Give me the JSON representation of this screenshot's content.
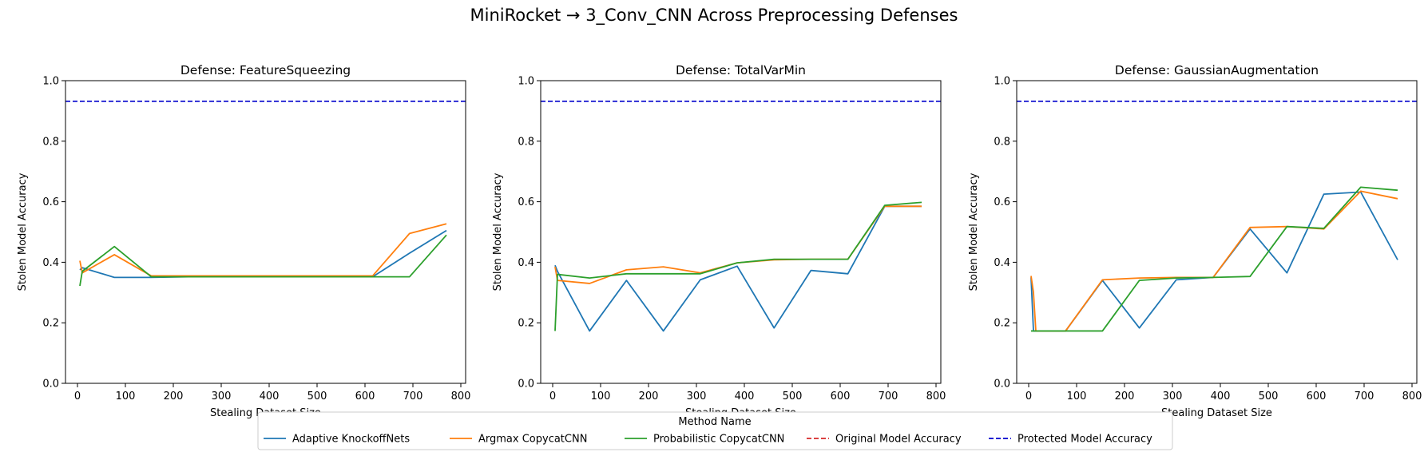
{
  "suptitle": "MiniRocket → 3_Conv_CNN Across Preprocessing Defenses",
  "colors": {
    "adaptive": "#1f77b4",
    "argmax": "#ff7f0e",
    "probabilistic": "#2ca02c",
    "original": "#d62728",
    "protected": "#0000cc"
  },
  "legend": {
    "title": "Method Name",
    "entries": [
      {
        "label": "Adaptive KnockoffNets",
        "key": "adaptive",
        "style": "solid"
      },
      {
        "label": "Argmax CopycatCNN",
        "key": "argmax",
        "style": "solid"
      },
      {
        "label": "Probabilistic CopycatCNN",
        "key": "probabilistic",
        "style": "solid"
      },
      {
        "label": "Original Model Accuracy",
        "key": "original",
        "style": "dashed"
      },
      {
        "label": "Protected Model Accuracy",
        "key": "protected",
        "style": "dashed"
      }
    ]
  },
  "chart_data": [
    {
      "type": "line",
      "title": "Defense: FeatureSqueezing",
      "xlabel": "Stealing Dataset Size",
      "ylabel": "Stolen Model Accuracy",
      "xlim": [
        -25,
        810
      ],
      "ylim": [
        0.0,
        1.0
      ],
      "xticks": [
        0,
        100,
        200,
        300,
        400,
        500,
        600,
        700,
        800
      ],
      "yticks": [
        0.0,
        0.2,
        0.4,
        0.6,
        0.8,
        1.0
      ],
      "grid": false,
      "hlines": [
        {
          "key": "protected",
          "y": 0.932
        }
      ],
      "series": [
        {
          "key": "adaptive",
          "x": [
            5,
            10,
            77,
            154,
            231,
            308,
            385,
            462,
            539,
            616,
            693,
            770
          ],
          "y": [
            0.375,
            0.382,
            0.35,
            0.35,
            0.352,
            0.352,
            0.352,
            0.352,
            0.352,
            0.352,
            0.43,
            0.505
          ]
        },
        {
          "key": "argmax",
          "x": [
            5,
            10,
            77,
            154,
            231,
            308,
            385,
            462,
            539,
            616,
            693,
            770
          ],
          "y": [
            0.405,
            0.365,
            0.425,
            0.355,
            0.355,
            0.355,
            0.355,
            0.355,
            0.355,
            0.355,
            0.495,
            0.527
          ]
        },
        {
          "key": "probabilistic",
          "x": [
            5,
            10,
            77,
            154,
            231,
            308,
            385,
            462,
            539,
            616,
            693,
            770
          ],
          "y": [
            0.322,
            0.37,
            0.452,
            0.352,
            0.352,
            0.352,
            0.352,
            0.352,
            0.352,
            0.352,
            0.352,
            0.49
          ]
        }
      ]
    },
    {
      "type": "line",
      "title": "Defense: TotalVarMin",
      "xlabel": "Stealing Dataset Size",
      "ylabel": "Stolen Model Accuracy",
      "xlim": [
        -25,
        810
      ],
      "ylim": [
        0.0,
        1.0
      ],
      "xticks": [
        0,
        100,
        200,
        300,
        400,
        500,
        600,
        700,
        800
      ],
      "yticks": [
        0.0,
        0.2,
        0.4,
        0.6,
        0.8,
        1.0
      ],
      "grid": false,
      "hlines": [
        {
          "key": "protected",
          "y": 0.932
        }
      ],
      "series": [
        {
          "key": "adaptive",
          "x": [
            5,
            10,
            77,
            154,
            231,
            308,
            385,
            462,
            539,
            616,
            693,
            770
          ],
          "y": [
            0.39,
            0.37,
            0.173,
            0.34,
            0.173,
            0.342,
            0.387,
            0.183,
            0.373,
            0.362,
            0.585,
            0.585
          ]
        },
        {
          "key": "argmax",
          "x": [
            5,
            10,
            77,
            154,
            231,
            308,
            385,
            462,
            539,
            616,
            693,
            770
          ],
          "y": [
            0.385,
            0.34,
            0.33,
            0.375,
            0.385,
            0.365,
            0.398,
            0.408,
            0.41,
            0.41,
            0.585,
            0.585
          ]
        },
        {
          "key": "probabilistic",
          "x": [
            5,
            10,
            77,
            154,
            231,
            308,
            385,
            462,
            539,
            616,
            693,
            770
          ],
          "y": [
            0.173,
            0.36,
            0.348,
            0.362,
            0.362,
            0.362,
            0.398,
            0.41,
            0.41,
            0.41,
            0.588,
            0.598
          ]
        }
      ]
    },
    {
      "type": "line",
      "title": "Defense: GaussianAugmentation",
      "xlabel": "Stealing Dataset Size",
      "ylabel": "Stolen Model Accuracy",
      "xlim": [
        -25,
        810
      ],
      "ylim": [
        0.0,
        1.0
      ],
      "xticks": [
        0,
        100,
        200,
        300,
        400,
        500,
        600,
        700,
        800
      ],
      "yticks": [
        0.0,
        0.2,
        0.4,
        0.6,
        0.8,
        1.0
      ],
      "grid": false,
      "hlines": [
        {
          "key": "protected",
          "y": 0.932
        }
      ],
      "series": [
        {
          "key": "adaptive",
          "x": [
            5,
            10,
            15,
            77,
            154,
            231,
            308,
            385,
            462,
            539,
            616,
            693,
            770
          ],
          "y": [
            0.35,
            0.173,
            0.173,
            0.173,
            0.34,
            0.183,
            0.342,
            0.35,
            0.51,
            0.365,
            0.625,
            0.632,
            0.408
          ]
        },
        {
          "key": "argmax",
          "x": [
            5,
            10,
            15,
            77,
            154,
            231,
            308,
            385,
            462,
            539,
            616,
            693,
            770
          ],
          "y": [
            0.355,
            0.3,
            0.173,
            0.173,
            0.342,
            0.348,
            0.35,
            0.35,
            0.515,
            0.518,
            0.51,
            0.635,
            0.61
          ]
        },
        {
          "key": "probabilistic",
          "x": [
            5,
            10,
            15,
            77,
            154,
            231,
            308,
            385,
            462,
            539,
            616,
            693,
            770
          ],
          "y": [
            0.173,
            0.173,
            0.173,
            0.173,
            0.173,
            0.34,
            0.348,
            0.35,
            0.353,
            0.518,
            0.512,
            0.648,
            0.638
          ]
        }
      ]
    }
  ]
}
